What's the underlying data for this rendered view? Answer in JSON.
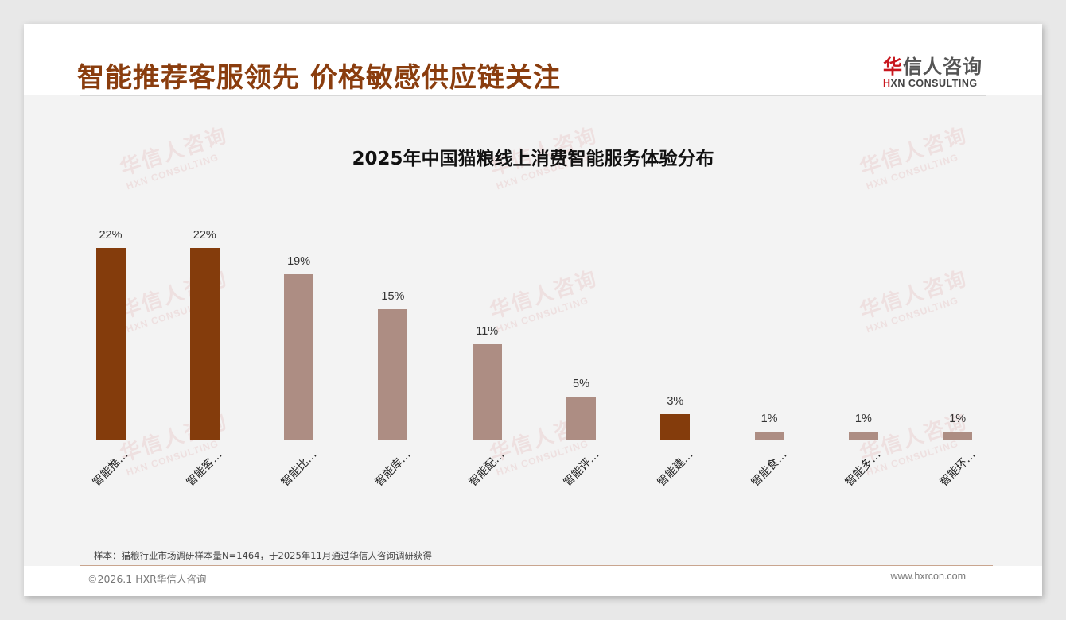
{
  "page": {
    "title": "智能推荐客服领先 价格敏感供应链关注",
    "logo_cn_hua": "华",
    "logo_cn_rest": "信人咨询",
    "logo_en_h": "H",
    "logo_en_rest": "XN CONSULTING",
    "watermark_cn": "华信人咨询",
    "watermark_en": "HXN CONSULTING"
  },
  "chart_data": {
    "type": "bar",
    "title": "2025年中国猫粮线上消费智能服务体验分布",
    "categories": [
      "智能推…",
      "智能客…",
      "智能比…",
      "智能库…",
      "智能配…",
      "智能评…",
      "智能建…",
      "智能食…",
      "智能多…",
      "智能环…"
    ],
    "values": [
      22,
      22,
      19,
      15,
      11,
      5,
      3,
      1,
      1,
      1
    ],
    "value_labels": [
      "22%",
      "22%",
      "19%",
      "15%",
      "11%",
      "5%",
      "3%",
      "1%",
      "1%",
      "1%"
    ],
    "highlight": [
      true,
      true,
      false,
      false,
      false,
      false,
      true,
      false,
      false,
      false
    ],
    "colors": {
      "highlight": "#843c0c",
      "normal": "#ad8d83"
    },
    "xlabel": "",
    "ylabel": "",
    "ylim": [
      0,
      22
    ],
    "grid": false,
    "legend": "none",
    "unit": "%"
  },
  "footer": {
    "note": "样本：猫粮行业市场调研样本量N=1464，于2025年11月通过华信人咨询调研获得",
    "copyright": "©2026.1 HXR华信人咨询",
    "website": "www.hxrcon.com"
  }
}
